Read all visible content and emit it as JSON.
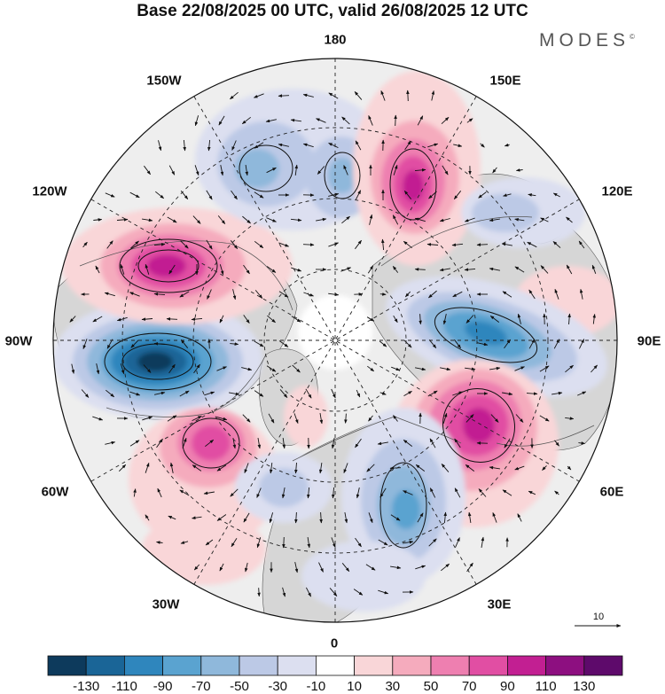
{
  "title": "Base 22/08/2025 00 UTC, valid 26/08/2025 12 UTC",
  "brand": {
    "name": "MODES",
    "mark": "©"
  },
  "longitude_labels": {
    "deg180": "180",
    "w150": "150W",
    "e150": "150E",
    "w120": "120W",
    "e120": "120E",
    "w90": "90W",
    "e90": "90E",
    "w60": "60W",
    "e60": "60E",
    "w30": "30W",
    "e30": "30E",
    "deg0": "0"
  },
  "reference_vector": {
    "label": "10"
  },
  "colorbar": {
    "labels": [
      "-130",
      "-110",
      "-90",
      "-70",
      "-50",
      "-30",
      "-10",
      "10",
      "30",
      "50",
      "70",
      "90",
      "110",
      "130"
    ],
    "colors": [
      "#0d3a5c",
      "#1a6597",
      "#2f86bd",
      "#5aa3d0",
      "#8fb8db",
      "#bcc9e6",
      "#dcdff0",
      "#ffffff",
      "#f9d6d8",
      "#f5abbd",
      "#ee7fb0",
      "#e14ea3",
      "#c21f92",
      "#8d0f80",
      "#5e0a6b"
    ]
  },
  "colors": {
    "land": "#d3d3d3",
    "ocean": "#eeeeee",
    "grid": "#222222"
  }
}
